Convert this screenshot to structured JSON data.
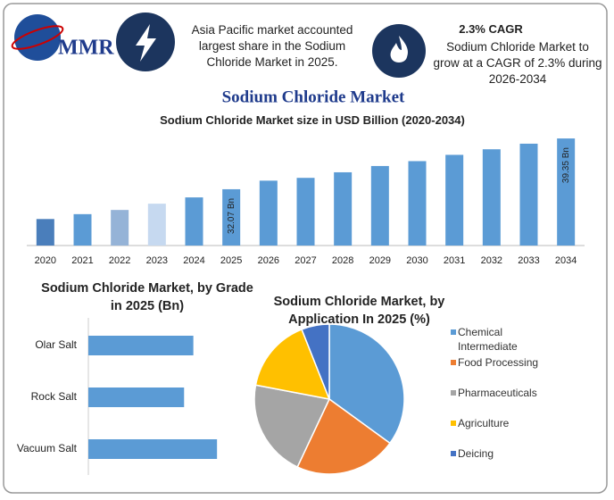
{
  "header": {
    "logo": "MMR",
    "highlight_1": "Asia Pacific market accounted largest share in the Sodium Chloride Market in 2025.",
    "highlight_2_title": "2.3% CAGR",
    "highlight_2": "Sodium Chloride Market to grow at a CAGR of 2.3% during 2026-2034"
  },
  "title": "Sodium Chloride Market",
  "chart_data": [
    {
      "type": "bar",
      "title": "Sodium Chloride Market size in USD Billion (2020-2034)",
      "categories": [
        "2020",
        "2021",
        "2022",
        "2023",
        "2024",
        "2025",
        "2026",
        "2027",
        "2028",
        "2029",
        "2030",
        "2031",
        "2032",
        "2033",
        "2034"
      ],
      "values": [
        27.8,
        28.5,
        29.1,
        30.0,
        30.9,
        32.07,
        33.3,
        33.7,
        34.5,
        35.4,
        36.1,
        37.0,
        37.8,
        38.6,
        39.35
      ],
      "value_labels": [
        null,
        null,
        null,
        null,
        null,
        "32.07 Bn",
        null,
        null,
        null,
        null,
        null,
        null,
        null,
        null,
        "39.35 Bn"
      ],
      "colors": [
        "#4a7ebb",
        "#5b9bd5",
        "#95b3d7",
        "#c6d9f0",
        "#5b9bd5",
        "#5b9bd5",
        "#5b9bd5",
        "#5b9bd5",
        "#5b9bd5",
        "#5b9bd5",
        "#5b9bd5",
        "#5b9bd5",
        "#5b9bd5",
        "#5b9bd5",
        "#5b9bd5"
      ],
      "ylim": [
        24,
        40
      ]
    },
    {
      "type": "hbar",
      "title": "Sodium Chloride Market, by Grade in 2025 (Bn)",
      "categories": [
        "Olar Salt",
        "Rock Salt",
        "Vacuum Salt"
      ],
      "values": [
        10.2,
        9.3,
        12.5
      ],
      "color": "#5b9bd5",
      "xlim": [
        0,
        15
      ]
    },
    {
      "type": "pie",
      "title": "Sodium Chloride Market, by Application In 2025 (%)",
      "categories": [
        "Chemical Intermediate",
        "Food Processing",
        "Pharmaceuticals",
        "Agriculture",
        "Deicing"
      ],
      "values": [
        35,
        22,
        21,
        16,
        6
      ],
      "colors": [
        "#5b9bd5",
        "#ed7d31",
        "#a5a5a5",
        "#ffc000",
        "#4472c4"
      ]
    }
  ]
}
